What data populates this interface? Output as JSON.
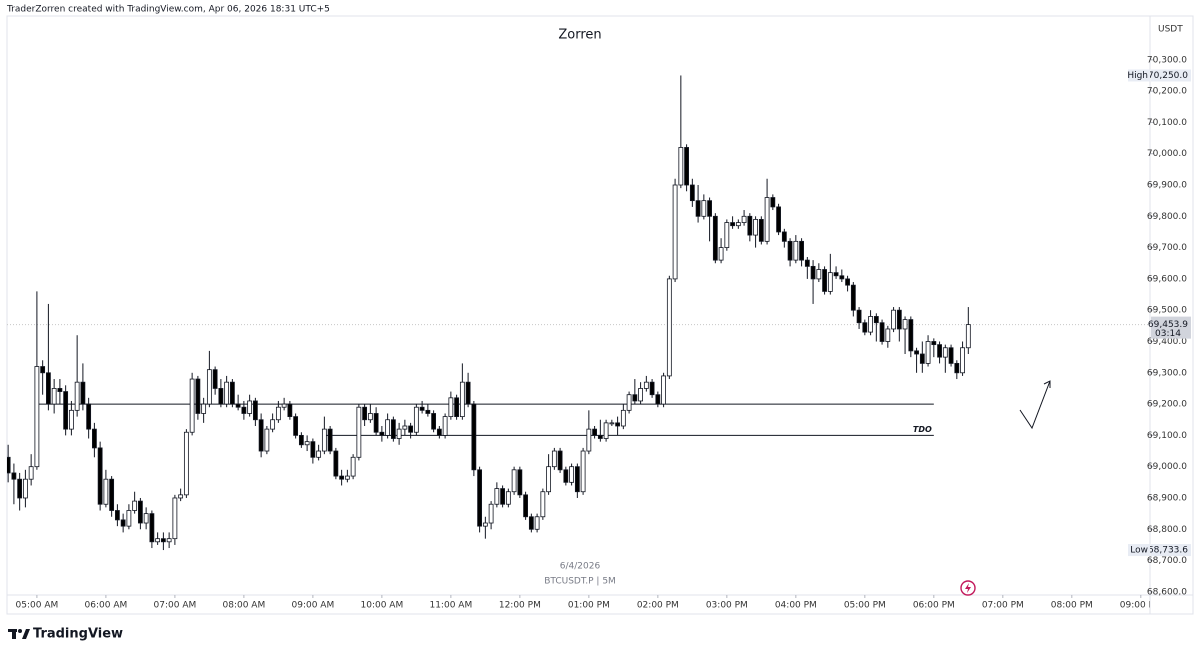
{
  "header": "TraderZorren created with TradingView.com, Apr 06, 2026 18:31 UTC+5",
  "footer_logo": "TradingView",
  "chart_data": {
    "type": "candlestick",
    "title": "Zorren",
    "currency": "USDT",
    "date": "6/4/2026",
    "symbol": "BTCUSDT.P | 5M",
    "up_color": "#ffffff",
    "down_color": "#000000",
    "xlim": [
      "04:34 AM",
      "09:08 PM"
    ],
    "xticks": [
      "05:00 AM",
      "06:00 AM",
      "07:00 AM",
      "08:00 AM",
      "09:00 AM",
      "10:00 AM",
      "11:00 AM",
      "12:00 PM",
      "01:00 PM",
      "02:00 PM",
      "03:00 PM",
      "04:00 PM",
      "05:00 PM",
      "06:00 PM",
      "07:00 PM",
      "08:00 PM",
      "09:00 PM"
    ],
    "ylim": [
      68590,
      70440
    ],
    "yticks": [
      {
        "value": 68600,
        "label": "68,600.0"
      },
      {
        "value": 68700,
        "label": "68,700.0"
      },
      {
        "value": 68800,
        "label": "68,800.0"
      },
      {
        "value": 68900,
        "label": "68,900.0"
      },
      {
        "value": 69000,
        "label": "69,000.0"
      },
      {
        "value": 69100,
        "label": "69,100.0"
      },
      {
        "value": 69200,
        "label": "69,200.0"
      },
      {
        "value": 69300,
        "label": "69,300.0"
      },
      {
        "value": 69400,
        "label": "69,400.0"
      },
      {
        "value": 69500,
        "label": "69,500.0"
      },
      {
        "value": 69600,
        "label": "69,600.0"
      },
      {
        "value": 69700,
        "label": "69,700.0"
      },
      {
        "value": 69800,
        "label": "69,800.0"
      },
      {
        "value": 69900,
        "label": "69,900.0"
      },
      {
        "value": 70000,
        "label": "70,000.0"
      },
      {
        "value": 70100,
        "label": "70,100.0"
      },
      {
        "value": 70200,
        "label": "70,200.0"
      },
      {
        "value": 70300,
        "label": "70,300.0"
      }
    ],
    "levels": [
      {
        "value": 69200,
        "from": "05:00 AM",
        "to": "06:00 PM"
      },
      {
        "value": 69100,
        "label": "TDO",
        "from": "09:10 AM",
        "to": "06:00 PM"
      }
    ],
    "high": {
      "label": "High",
      "value": 70250,
      "value_label": "70,250.0"
    },
    "low": {
      "label": "Low",
      "value": 68733.6,
      "value_label": "68,733.6"
    },
    "last": {
      "value": 69453.9,
      "value_label": "69,453.9",
      "countdown": "03:14"
    },
    "x": [
      "04:35 AM",
      "04:40 AM",
      "04:45 AM",
      "04:50 AM",
      "04:55 AM",
      "05:00 AM",
      "05:05 AM",
      "05:10 AM",
      "05:15 AM",
      "05:20 AM",
      "05:25 AM",
      "05:30 AM",
      "05:35 AM",
      "05:40 AM",
      "05:45 AM",
      "05:50 AM",
      "05:55 AM",
      "06:00 AM",
      "06:05 AM",
      "06:10 AM",
      "06:15 AM",
      "06:20 AM",
      "06:25 AM",
      "06:30 AM",
      "06:35 AM",
      "06:40 AM",
      "06:45 AM",
      "06:50 AM",
      "06:55 AM",
      "07:00 AM",
      "07:05 AM",
      "07:10 AM",
      "07:15 AM",
      "07:20 AM",
      "07:25 AM",
      "07:30 AM",
      "07:35 AM",
      "07:40 AM",
      "07:45 AM",
      "07:50 AM",
      "07:55 AM",
      "08:00 AM",
      "08:05 AM",
      "08:10 AM",
      "08:15 AM",
      "08:20 AM",
      "08:25 AM",
      "08:30 AM",
      "08:35 AM",
      "08:40 AM",
      "08:45 AM",
      "08:50 AM",
      "08:55 AM",
      "09:00 AM",
      "09:05 AM",
      "09:10 AM",
      "09:15 AM",
      "09:20 AM",
      "09:25 AM",
      "09:30 AM",
      "09:35 AM",
      "09:40 AM",
      "09:45 AM",
      "09:50 AM",
      "09:55 AM",
      "10:00 AM",
      "10:05 AM",
      "10:10 AM",
      "10:15 AM",
      "10:20 AM",
      "10:25 AM",
      "10:30 AM",
      "10:35 AM",
      "10:40 AM",
      "10:45 AM",
      "10:50 AM",
      "10:55 AM",
      "11:00 AM",
      "11:05 AM",
      "11:10 AM",
      "11:15 AM",
      "11:20 AM",
      "11:25 AM",
      "11:30 AM",
      "11:35 AM",
      "11:40 AM",
      "11:45 AM",
      "11:50 AM",
      "11:55 AM",
      "12:00 PM",
      "12:05 PM",
      "12:10 PM",
      "12:15 PM",
      "12:20 PM",
      "12:25 PM",
      "12:30 PM",
      "12:35 PM",
      "12:40 PM",
      "12:45 PM",
      "12:50 PM",
      "12:55 PM",
      "01:00 PM",
      "01:05 PM",
      "01:10 PM",
      "01:15 PM",
      "01:20 PM",
      "01:25 PM",
      "01:30 PM",
      "01:35 PM",
      "01:40 PM",
      "01:45 PM",
      "01:50 PM",
      "01:55 PM",
      "02:00 PM",
      "02:05 PM",
      "02:10 PM",
      "02:15 PM",
      "02:20 PM",
      "02:25 PM",
      "02:30 PM",
      "02:35 PM",
      "02:40 PM",
      "02:45 PM",
      "02:50 PM",
      "02:55 PM",
      "03:00 PM",
      "03:05 PM",
      "03:10 PM",
      "03:15 PM",
      "03:20 PM",
      "03:25 PM",
      "03:30 PM",
      "03:35 PM",
      "03:40 PM",
      "03:45 PM",
      "03:50 PM",
      "03:55 PM",
      "04:00 PM",
      "04:05 PM",
      "04:10 PM",
      "04:15 PM",
      "04:20 PM",
      "04:25 PM",
      "04:30 PM",
      "04:35 PM",
      "04:40 PM",
      "04:45 PM",
      "04:50 PM",
      "04:55 PM",
      "05:00 PM",
      "05:05 PM",
      "05:10 PM",
      "05:15 PM",
      "05:20 PM",
      "05:25 PM",
      "05:30 PM",
      "05:35 PM",
      "05:40 PM",
      "05:45 PM",
      "05:50 PM",
      "05:55 PM",
      "06:00 PM",
      "06:05 PM",
      "06:10 PM",
      "06:15 PM",
      "06:20 PM",
      "06:25 PM",
      "06:30 PM"
    ],
    "ohlc": [
      [
        69030,
        69070,
        68950,
        68980
      ],
      [
        68980,
        69010,
        68880,
        68960
      ],
      [
        68960,
        68980,
        68860,
        68900
      ],
      [
        68900,
        68990,
        68870,
        68960
      ],
      [
        68960,
        69040,
        68940,
        69000
      ],
      [
        69000,
        69560,
        68990,
        69320
      ],
      [
        69320,
        69340,
        69230,
        69300
      ],
      [
        69300,
        69520,
        69180,
        69200
      ],
      [
        69200,
        69280,
        69170,
        69250
      ],
      [
        69250,
        69280,
        69200,
        69240
      ],
      [
        69240,
        69260,
        69100,
        69120
      ],
      [
        69120,
        69210,
        69100,
        69180
      ],
      [
        69180,
        69420,
        69160,
        69270
      ],
      [
        69270,
        69330,
        69180,
        69200
      ],
      [
        69200,
        69220,
        69090,
        69120
      ],
      [
        69120,
        69140,
        69030,
        69060
      ],
      [
        69060,
        69080,
        68860,
        68880
      ],
      [
        68880,
        68990,
        68870,
        68960
      ],
      [
        68960,
        68970,
        68840,
        68860
      ],
      [
        68860,
        68880,
        68810,
        68830
      ],
      [
        68830,
        68850,
        68790,
        68810
      ],
      [
        68810,
        68880,
        68800,
        68860
      ],
      [
        68860,
        68920,
        68850,
        68890
      ],
      [
        68890,
        68900,
        68800,
        68820
      ],
      [
        68820,
        68870,
        68800,
        68850
      ],
      [
        68850,
        68860,
        68740,
        68760
      ],
      [
        68760,
        68790,
        68750,
        68770
      ],
      [
        68770,
        68790,
        68733.6,
        68760
      ],
      [
        68760,
        68790,
        68740,
        68770
      ],
      [
        68770,
        68910,
        68750,
        68900
      ],
      [
        68900,
        68930,
        68890,
        68910
      ],
      [
        68910,
        69120,
        68900,
        69110
      ],
      [
        69110,
        69300,
        69100,
        69280
      ],
      [
        69280,
        69290,
        69150,
        69170
      ],
      [
        69170,
        69220,
        69140,
        69200
      ],
      [
        69200,
        69370,
        69190,
        69310
      ],
      [
        69310,
        69320,
        69230,
        69250
      ],
      [
        69250,
        69280,
        69190,
        69200
      ],
      [
        69200,
        69290,
        69190,
        69270
      ],
      [
        69270,
        69280,
        69190,
        69200
      ],
      [
        69200,
        69230,
        69180,
        69190
      ],
      [
        69190,
        69210,
        69150,
        69170
      ],
      [
        69170,
        69230,
        69160,
        69210
      ],
      [
        69210,
        69220,
        69130,
        69150
      ],
      [
        69150,
        69170,
        69030,
        69050
      ],
      [
        69050,
        69130,
        69040,
        69120
      ],
      [
        69120,
        69170,
        69110,
        69150
      ],
      [
        69150,
        69210,
        69140,
        69190
      ],
      [
        69190,
        69220,
        69180,
        69200
      ],
      [
        69200,
        69210,
        69150,
        69160
      ],
      [
        69160,
        69170,
        69090,
        69100
      ],
      [
        69100,
        69110,
        69060,
        69070
      ],
      [
        69070,
        69100,
        69050,
        69080
      ],
      [
        69080,
        69090,
        69010,
        69030
      ],
      [
        69030,
        69070,
        69020,
        69050
      ],
      [
        69050,
        69160,
        69040,
        69120
      ],
      [
        69120,
        69130,
        69040,
        69050
      ],
      [
        69050,
        69060,
        68960,
        68970
      ],
      [
        68970,
        68990,
        68940,
        68960
      ],
      [
        68960,
        68990,
        68950,
        68970
      ],
      [
        68970,
        69040,
        68960,
        69030
      ],
      [
        69030,
        69200,
        69020,
        69190
      ],
      [
        69190,
        69200,
        69130,
        69150
      ],
      [
        69150,
        69200,
        69140,
        69170
      ],
      [
        69170,
        69190,
        69100,
        69110
      ],
      [
        69110,
        69130,
        69080,
        69100
      ],
      [
        69100,
        69170,
        69090,
        69150
      ],
      [
        69150,
        69160,
        69080,
        69090
      ],
      [
        69090,
        69140,
        69070,
        69120
      ],
      [
        69120,
        69150,
        69100,
        69130
      ],
      [
        69130,
        69140,
        69090,
        69110
      ],
      [
        69110,
        69200,
        69100,
        69190
      ],
      [
        69190,
        69210,
        69170,
        69180
      ],
      [
        69180,
        69200,
        69160,
        69170
      ],
      [
        69170,
        69180,
        69110,
        69120
      ],
      [
        69120,
        69130,
        69090,
        69100
      ],
      [
        69100,
        69170,
        69090,
        69160
      ],
      [
        69160,
        69240,
        69150,
        69220
      ],
      [
        69220,
        69230,
        69150,
        69160
      ],
      [
        69160,
        69330,
        69150,
        69270
      ],
      [
        69270,
        69300,
        69190,
        69200
      ],
      [
        69200,
        69210,
        68970,
        68990
      ],
      [
        68990,
        69000,
        68790,
        68810
      ],
      [
        68810,
        68840,
        68770,
        68820
      ],
      [
        68820,
        68890,
        68800,
        68880
      ],
      [
        68880,
        68950,
        68870,
        68930
      ],
      [
        68930,
        68940,
        68870,
        68880
      ],
      [
        68880,
        68930,
        68870,
        68920
      ],
      [
        68920,
        69000,
        68910,
        68990
      ],
      [
        68990,
        69000,
        68900,
        68910
      ],
      [
        68910,
        68920,
        68830,
        68840
      ],
      [
        68840,
        68850,
        68790,
        68800
      ],
      [
        68800,
        68850,
        68790,
        68840
      ],
      [
        68840,
        68930,
        68830,
        68920
      ],
      [
        68920,
        69040,
        68910,
        69000
      ],
      [
        69000,
        69060,
        68990,
        69050
      ],
      [
        69050,
        69060,
        68980,
        68990
      ],
      [
        68990,
        69000,
        68940,
        68950
      ],
      [
        68950,
        69010,
        68940,
        69000
      ],
      [
        69000,
        69010,
        68900,
        68920
      ],
      [
        68920,
        69060,
        68910,
        69050
      ],
      [
        69050,
        69180,
        69040,
        69120
      ],
      [
        69120,
        69130,
        69090,
        69100
      ],
      [
        69100,
        69150,
        69080,
        69090
      ],
      [
        69090,
        69150,
        69080,
        69140
      ],
      [
        69140,
        69150,
        69130,
        69140
      ],
      [
        69140,
        69160,
        69100,
        69130
      ],
      [
        69130,
        69200,
        69120,
        69180
      ],
      [
        69180,
        69240,
        69170,
        69230
      ],
      [
        69230,
        69280,
        69200,
        69210
      ],
      [
        69210,
        69270,
        69200,
        69250
      ],
      [
        69250,
        69290,
        69240,
        69270
      ],
      [
        69270,
        69280,
        69220,
        69230
      ],
      [
        69230,
        69240,
        69190,
        69200
      ],
      [
        69200,
        69300,
        69190,
        69290
      ],
      [
        69290,
        69610,
        69280,
        69600
      ],
      [
        69600,
        69920,
        69590,
        69900
      ],
      [
        69900,
        70250,
        69890,
        70020
      ],
      [
        70020,
        70030,
        69880,
        69900
      ],
      [
        69900,
        69920,
        69830,
        69850
      ],
      [
        69850,
        69900,
        69780,
        69800
      ],
      [
        69800,
        69870,
        69790,
        69850
      ],
      [
        69850,
        69860,
        69720,
        69800
      ],
      [
        69800,
        69810,
        69650,
        69660
      ],
      [
        69660,
        69730,
        69650,
        69700
      ],
      [
        69700,
        69790,
        69690,
        69780
      ],
      [
        69780,
        69800,
        69760,
        69770
      ],
      [
        69770,
        69790,
        69760,
        69780
      ],
      [
        69780,
        69820,
        69770,
        69800
      ],
      [
        69800,
        69810,
        69720,
        69740
      ],
      [
        69740,
        69800,
        69700,
        69790
      ],
      [
        69790,
        69800,
        69710,
        69720
      ],
      [
        69720,
        69920,
        69710,
        69860
      ],
      [
        69860,
        69870,
        69820,
        69830
      ],
      [
        69830,
        69840,
        69740,
        69750
      ],
      [
        69750,
        69760,
        69700,
        69720
      ],
      [
        69720,
        69730,
        69640,
        69660
      ],
      [
        69660,
        69740,
        69650,
        69720
      ],
      [
        69720,
        69730,
        69640,
        69660
      ],
      [
        69660,
        69670,
        69600,
        69640
      ],
      [
        69640,
        69660,
        69520,
        69600
      ],
      [
        69600,
        69650,
        69590,
        69630
      ],
      [
        69630,
        69640,
        69550,
        69560
      ],
      [
        69560,
        69680,
        69550,
        69620
      ],
      [
        69620,
        69640,
        69600,
        69610
      ],
      [
        69610,
        69630,
        69590,
        69600
      ],
      [
        69600,
        69610,
        69560,
        69580
      ],
      [
        69580,
        69590,
        69480,
        69500
      ],
      [
        69500,
        69510,
        69440,
        69460
      ],
      [
        69460,
        69470,
        69420,
        69430
      ],
      [
        69430,
        69500,
        69420,
        69480
      ],
      [
        69480,
        69490,
        69400,
        69460
      ],
      [
        69460,
        69470,
        69390,
        69400
      ],
      [
        69400,
        69450,
        69380,
        69440
      ],
      [
        69440,
        69510,
        69430,
        69500
      ],
      [
        69500,
        69510,
        69400,
        69440
      ],
      [
        69440,
        69480,
        69360,
        69470
      ],
      [
        69470,
        69480,
        69350,
        69370
      ],
      [
        69370,
        69380,
        69300,
        69360
      ],
      [
        69360,
        69400,
        69300,
        69330
      ],
      [
        69330,
        69420,
        69320,
        69400
      ],
      [
        69400,
        69410,
        69350,
        69390
      ],
      [
        69390,
        69400,
        69330,
        69350
      ],
      [
        69350,
        69390,
        69300,
        69380
      ],
      [
        69380,
        69390,
        69320,
        69330
      ],
      [
        69330,
        69340,
        69280,
        69300
      ],
      [
        69300,
        69400,
        69290,
        69380
      ],
      [
        69380,
        69510,
        69360,
        69453.9
      ]
    ]
  }
}
